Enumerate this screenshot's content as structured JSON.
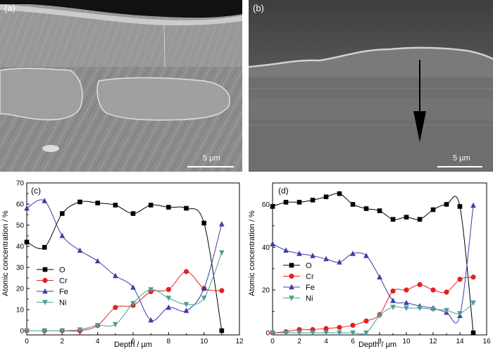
{
  "micrograph_a": {
    "label": "(a)",
    "scale_text": "5 µm"
  },
  "micrograph_b": {
    "label": "(b)",
    "scale_text": "5 µm"
  },
  "chart_data": [
    {
      "type": "line",
      "panel_label": "(c)",
      "xlabel": "Depth / µm",
      "ylabel": "Atomic concentration / %",
      "xlim": [
        0,
        12
      ],
      "ylim": [
        -2,
        70
      ],
      "xticks": [
        0,
        2,
        4,
        6,
        8,
        10,
        12
      ],
      "yticks": [
        0,
        10,
        20,
        30,
        40,
        50,
        60,
        70
      ],
      "legend_position": "bottom-left",
      "grid": false,
      "series": [
        {
          "name": "O",
          "marker": "square",
          "color": "#000000",
          "x": [
            0,
            1,
            2,
            3,
            4,
            5,
            6,
            7,
            8,
            9,
            10,
            11
          ],
          "y": [
            42,
            39.5,
            55.5,
            61,
            60.5,
            59.5,
            55.5,
            59.5,
            58.5,
            58,
            51,
            0
          ]
        },
        {
          "name": "Cr",
          "marker": "circle",
          "color": "#e32020",
          "x": [
            0,
            1,
            2,
            3,
            4,
            5,
            6,
            7,
            8,
            9,
            10,
            11
          ],
          "y": [
            0,
            0,
            0,
            0,
            2.5,
            11,
            12,
            18.5,
            19.5,
            28,
            20,
            19
          ]
        },
        {
          "name": "Fe",
          "marker": "triangle",
          "color": "#3c3ca8",
          "x": [
            0,
            1,
            2,
            3,
            4,
            5,
            6,
            7,
            8,
            9,
            10,
            11
          ],
          "y": [
            58,
            61.5,
            45,
            38,
            33,
            26,
            20.5,
            5,
            11,
            9.5,
            20,
            50.5
          ]
        },
        {
          "name": "Ni",
          "marker": "triangle-down",
          "color": "#4a9e96",
          "x": [
            0,
            1,
            2,
            3,
            4,
            5,
            6,
            7,
            8,
            9,
            10,
            11
          ],
          "y": [
            0,
            0,
            0,
            0.5,
            2.5,
            3,
            13,
            19.5,
            15.5,
            12.5,
            15.5,
            37
          ]
        }
      ]
    },
    {
      "type": "line",
      "panel_label": "(d)",
      "xlabel": "Depth / µm",
      "ylabel": "Atomic concentration / %",
      "xlim": [
        0,
        16
      ],
      "ylim": [
        -1,
        70
      ],
      "xticks": [
        0,
        2,
        4,
        6,
        8,
        10,
        12,
        14,
        16
      ],
      "yticks": [
        0,
        20,
        40,
        60
      ],
      "legend_position": "middle-left",
      "grid": false,
      "series": [
        {
          "name": "O",
          "marker": "square",
          "color": "#000000",
          "x": [
            0,
            1,
            2,
            3,
            4,
            5,
            6,
            7,
            8,
            9,
            10,
            11,
            12,
            13,
            14,
            15
          ],
          "y": [
            59,
            61,
            61,
            62,
            63.5,
            65,
            60,
            58,
            57,
            53,
            54,
            53,
            57.5,
            60,
            59,
            0
          ]
        },
        {
          "name": "Cr",
          "marker": "circle",
          "color": "#e32020",
          "x": [
            0,
            1,
            2,
            3,
            4,
            5,
            6,
            7,
            8,
            9,
            10,
            11,
            12,
            13,
            14,
            15
          ],
          "y": [
            0,
            0.5,
            1.5,
            1.5,
            2,
            2.5,
            3.5,
            5.5,
            8.5,
            19.5,
            20,
            22.5,
            20,
            19,
            25,
            26
          ]
        },
        {
          "name": "Fe",
          "marker": "triangle",
          "color": "#3c3ca8",
          "x": [
            0,
            1,
            2,
            3,
            4,
            5,
            6,
            7,
            8,
            9,
            10,
            11,
            12,
            13,
            14,
            15
          ],
          "y": [
            41.5,
            38.5,
            37,
            36,
            34.5,
            33,
            37,
            36,
            26,
            15,
            14,
            12.5,
            11.5,
            9.5,
            8,
            59.5
          ]
        },
        {
          "name": "Ni",
          "marker": "triangle-down",
          "color": "#4a9e96",
          "x": [
            0,
            1,
            2,
            3,
            4,
            5,
            6,
            7,
            8,
            9,
            10,
            11,
            12,
            13,
            14,
            15
          ],
          "y": [
            0,
            0,
            0,
            0,
            0,
            0,
            0,
            0,
            8,
            12,
            11.5,
            11.5,
            11,
            10.5,
            9,
            14
          ]
        }
      ]
    }
  ]
}
